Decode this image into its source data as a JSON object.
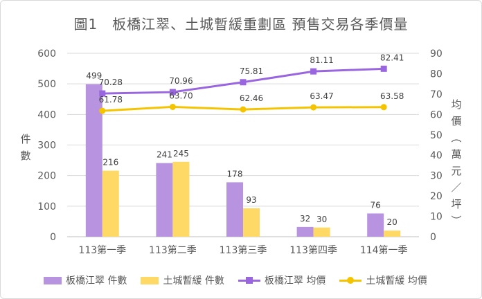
{
  "chart_data": {
    "type": "bar",
    "title": "圖1　板橋江翠、土城暫緩重劃區 預售交易各季價量",
    "categories": [
      "113第一季",
      "113第二季",
      "113第三季",
      "113第四季",
      "114第一季"
    ],
    "ylabel_left": "件數",
    "ylabel_right": "均價(萬元/坪)",
    "ylim_left": [
      0,
      600
    ],
    "ylim_right": [
      0,
      90
    ],
    "yticks_left": [
      "0",
      "100",
      "200",
      "300",
      "400",
      "500",
      "600"
    ],
    "yticks_right": [
      "0",
      "10",
      "20",
      "30",
      "40",
      "50",
      "60",
      "70",
      "80",
      "90"
    ],
    "grid": true,
    "legend_position": "bottom",
    "series": [
      {
        "name": "板橋江翠 件數",
        "kind": "bar",
        "axis": "left",
        "color": "#b894e0",
        "values": [
          499,
          241,
          178,
          32,
          76
        ],
        "labels": [
          "499",
          "241",
          "178",
          "32",
          "76"
        ]
      },
      {
        "name": "土城暫緩 件數",
        "kind": "bar",
        "axis": "left",
        "color": "#ffd966",
        "values": [
          216,
          245,
          93,
          30,
          20
        ],
        "labels": [
          "216",
          "245",
          "93",
          "30",
          "20"
        ]
      },
      {
        "name": "板橋江翠 均價",
        "kind": "line",
        "marker": "square",
        "axis": "right",
        "color": "#9966e0",
        "values": [
          70.28,
          70.96,
          75.81,
          81.11,
          82.41
        ],
        "labels": [
          "70.28",
          "70.96",
          "75.81",
          "81.11",
          "82.41"
        ]
      },
      {
        "name": "土城暫緩 均價",
        "kind": "line",
        "marker": "circle",
        "axis": "right",
        "color": "#f5c400",
        "values": [
          61.78,
          63.7,
          62.46,
          63.47,
          63.58
        ],
        "labels": [
          "61.78",
          "63.70",
          "62.46",
          "63.47",
          "63.58"
        ]
      }
    ]
  }
}
